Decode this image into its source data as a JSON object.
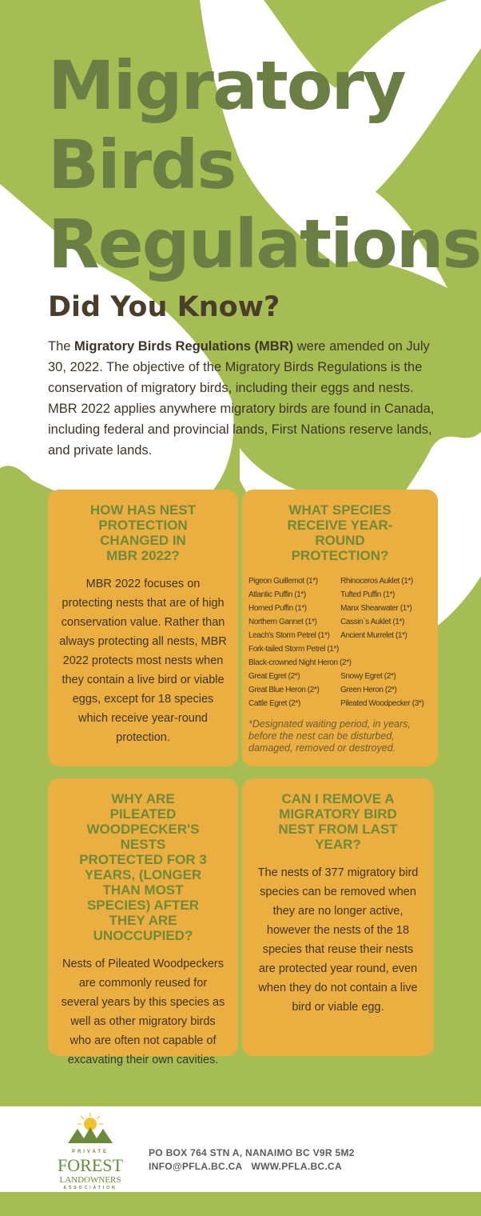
{
  "title": {
    "line1": "Migratory",
    "line2": "Birds",
    "line3": "Regulations"
  },
  "did_you_know": {
    "heading": "Did You Know?",
    "intro_pre": "The ",
    "intro_bold": "Migratory Birds Regulations (MBR)",
    "intro_post": " were amended on July 30, 2022. The objective of the Migratory Birds Regulations is the conservation of migratory birds, including their eggs and nests. MBR 2022 applies anywhere migratory birds are found in Canada, including federal and provincial lands, First Nations reserve lands, and private lands."
  },
  "boxes": [
    {
      "heading": "How has nest protection changed in MBR 2022?",
      "body": "MBR 2022 focuses on protecting nests that are of high conservation value. Rather than always protecting all nests, MBR 2022 protects most nests when they contain a live bird or viable eggs, except for 18 species which receive year-round protection."
    },
    {
      "heading": "What species receive year-round protection?",
      "species": [
        "Pigeon Guillemot (1*)",
        "Rhinoceros Auklet (1*)",
        "Atlantic Puffin (1*)",
        "Tufted Puffin (1*)",
        "Horned Puffin (1*)",
        "Manx Shearwater (1*)",
        "Northern Gannet (1*)",
        "Cassin`s Auklet (1*)",
        "Leach's Storm Petrel (1*)",
        "Ancient Murrelet (1*)",
        "Fork-tailed Storm Petrel (1*)",
        "Black-crowned Night Heron (2*)",
        "Great Egret (2*)",
        "Snowy Egret (2*)",
        "Great Blue Heron (2*)",
        "Green Heron (2*)",
        "Cattle Egret (2*)",
        "Pileated Woodpecker (3*)"
      ],
      "note": "*Designated waiting period, in years, before the nest can be disturbed, damaged, removed or destroyed."
    },
    {
      "heading": "Why are Pileated Woodpecker's nests protected for 3 years, (longer than most species) after they are unoccupied?",
      "body": "Nests of Pileated Woodpeckers are commonly reused for several years by this species as well as other migratory birds who are often not capable of excavating their own cavities."
    },
    {
      "heading": "Can I remove a migratory bird nest from last year?",
      "body": "The nests of 377 migratory bird species can be removed when they are no longer active, however the nests of the 18 species that reuse their nests are protected year round, even when they do not contain a live bird or viable egg."
    }
  ],
  "footer": {
    "logo_private": "PRIVATE",
    "logo_forest": "FOREST",
    "logo_landowners": "LANDOWNERS",
    "logo_association": "ASSOCIATION",
    "address": "PO BOX 764 STN A, NANAIMO BC V9R 5M2",
    "email": "INFO@PFLA.BC.CA",
    "website": "WWW.PFLA.BC.CA"
  },
  "colors": {
    "background": "#a6bd53",
    "title": "#6b7f45",
    "box": "#ebae40",
    "box_heading": "#6f8a3a"
  }
}
